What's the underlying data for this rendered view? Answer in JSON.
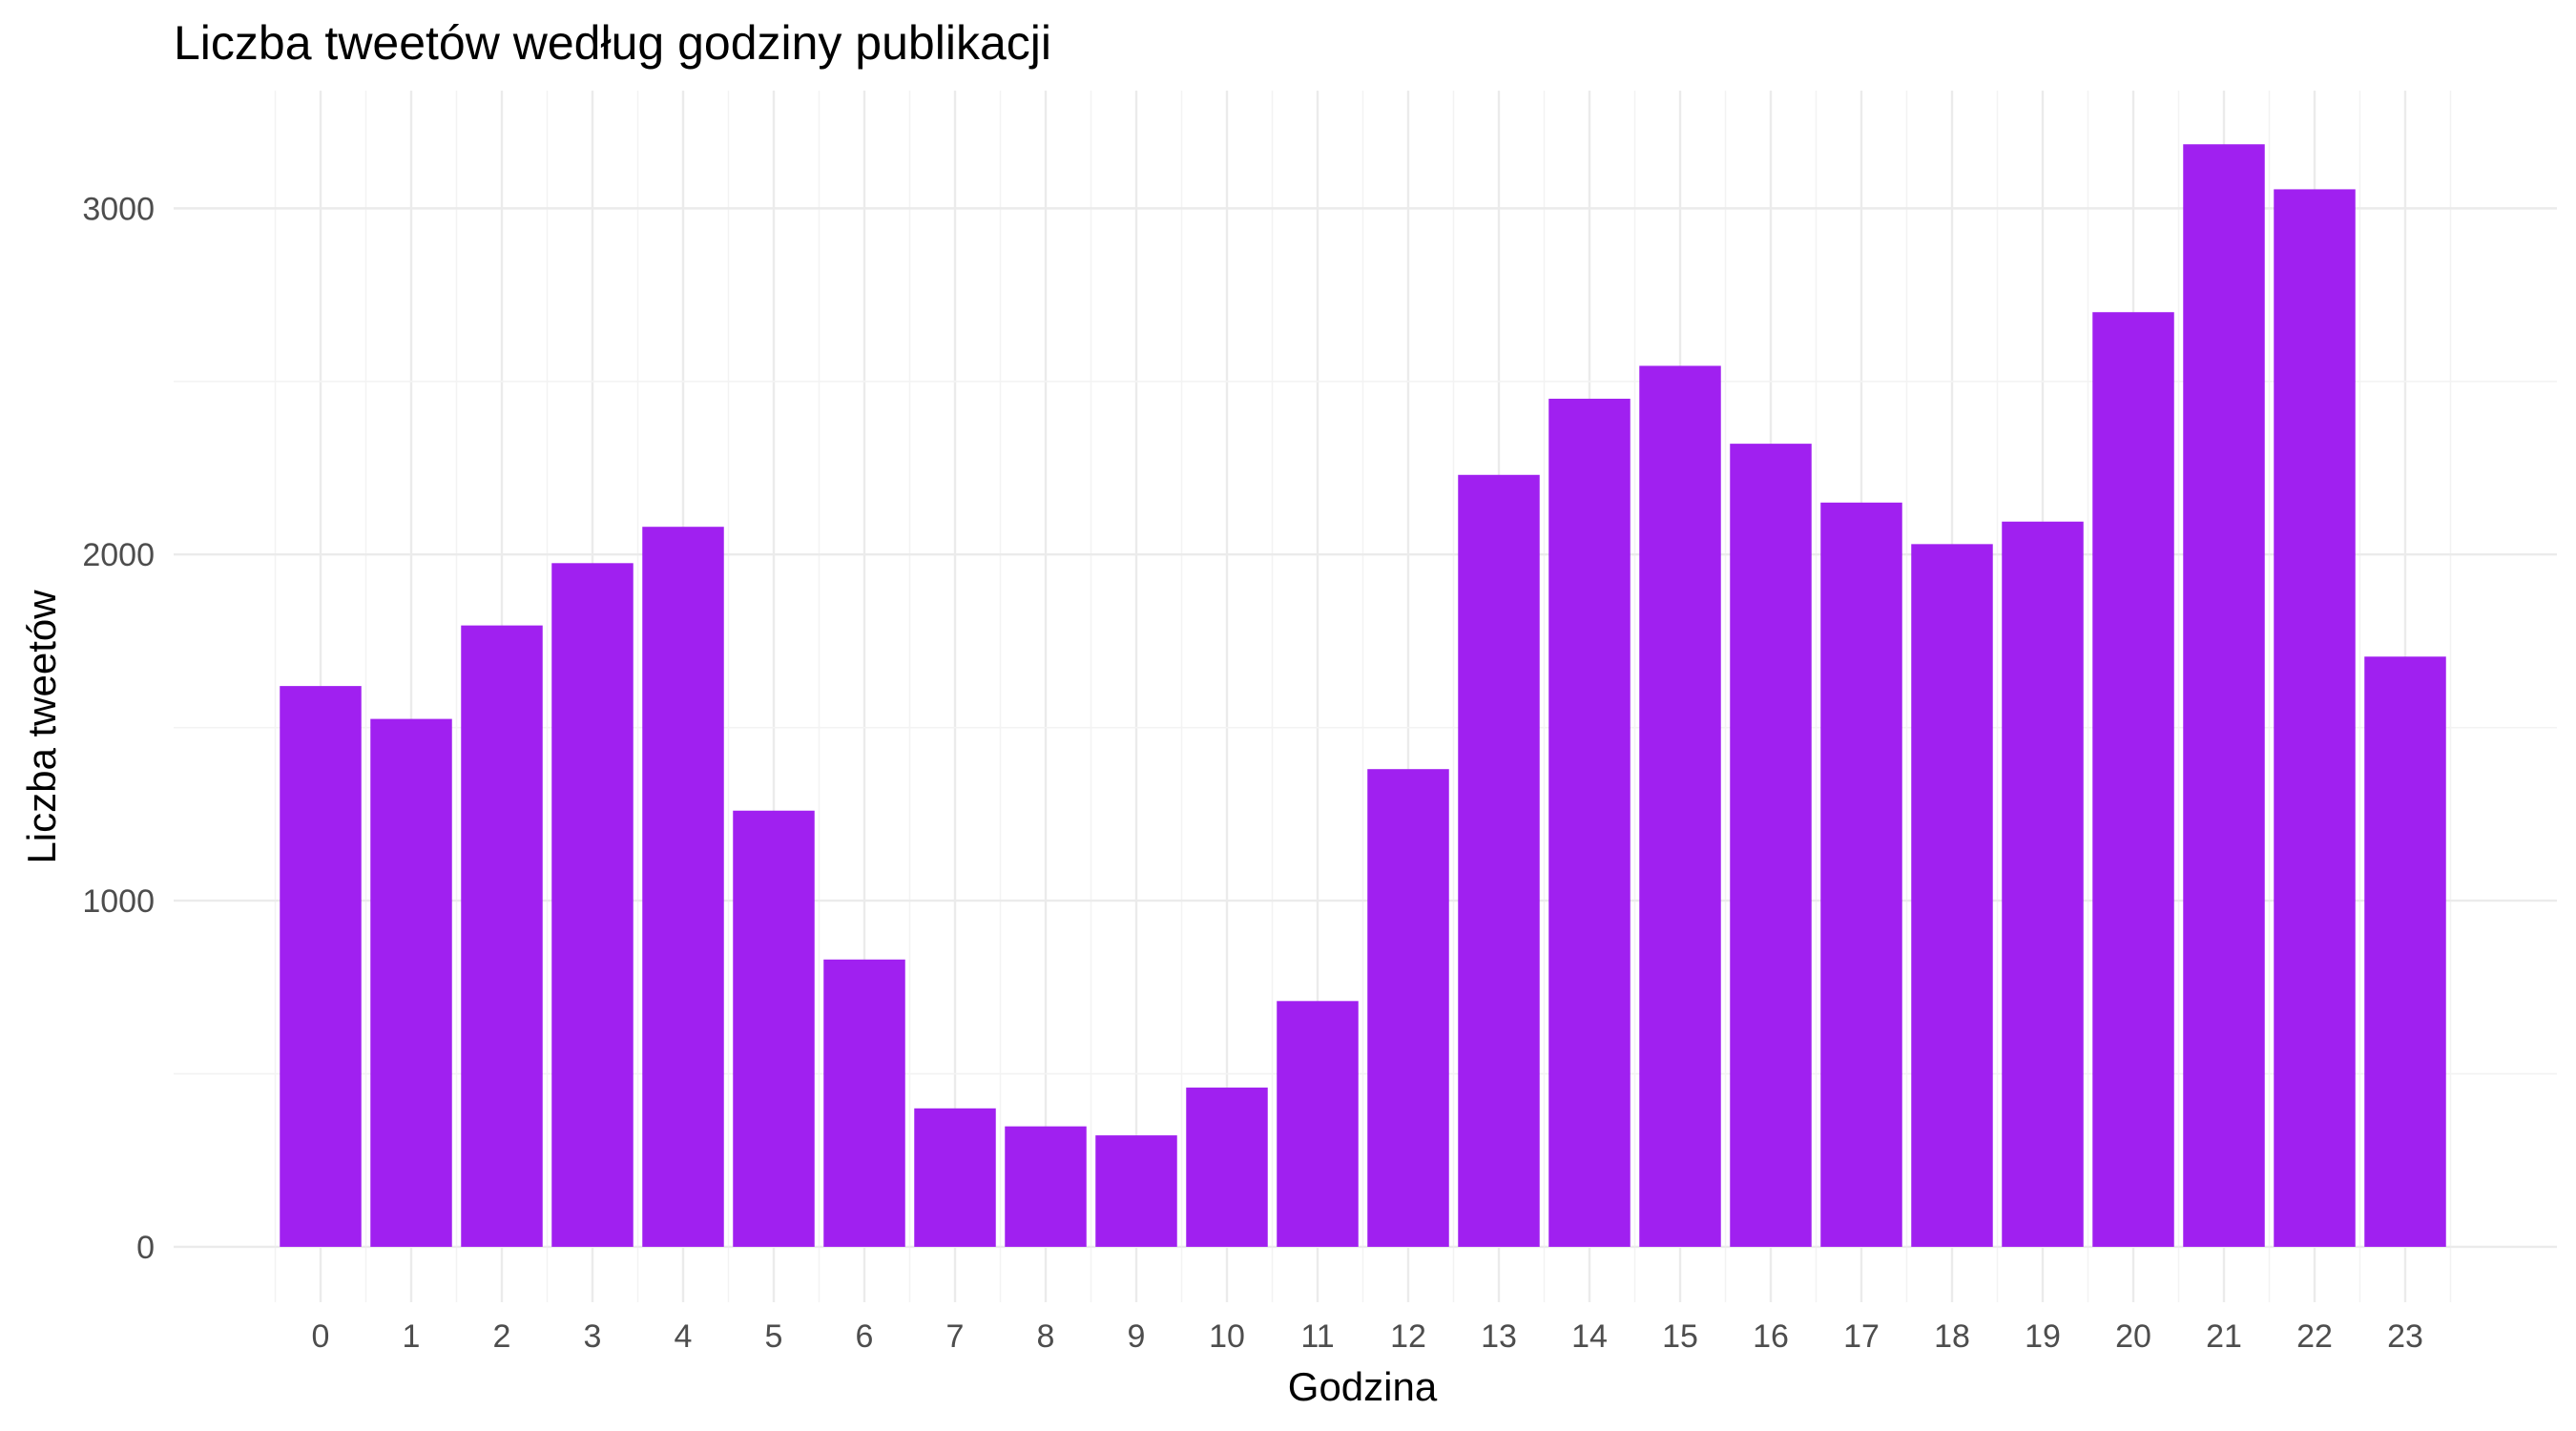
{
  "chart_data": {
    "type": "bar",
    "title": "Liczba tweetów według godziny publikacji",
    "xlabel": "Godzina",
    "ylabel": "Liczba tweetów",
    "categories": [
      "0",
      "1",
      "2",
      "3",
      "4",
      "5",
      "6",
      "7",
      "8",
      "9",
      "10",
      "11",
      "12",
      "13",
      "14",
      "15",
      "16",
      "17",
      "18",
      "19",
      "20",
      "21",
      "22",
      "23"
    ],
    "values": [
      1620,
      1525,
      1795,
      1975,
      2080,
      1260,
      830,
      400,
      348,
      322,
      460,
      710,
      1380,
      2230,
      2450,
      2545,
      2320,
      2150,
      2030,
      2095,
      2700,
      3185,
      3055,
      1705
    ],
    "ylim": [
      -160,
      3340
    ],
    "yticks": [
      0,
      1000,
      2000,
      3000
    ],
    "bar_color": "#A020F0",
    "grid": true,
    "legend": "none"
  }
}
